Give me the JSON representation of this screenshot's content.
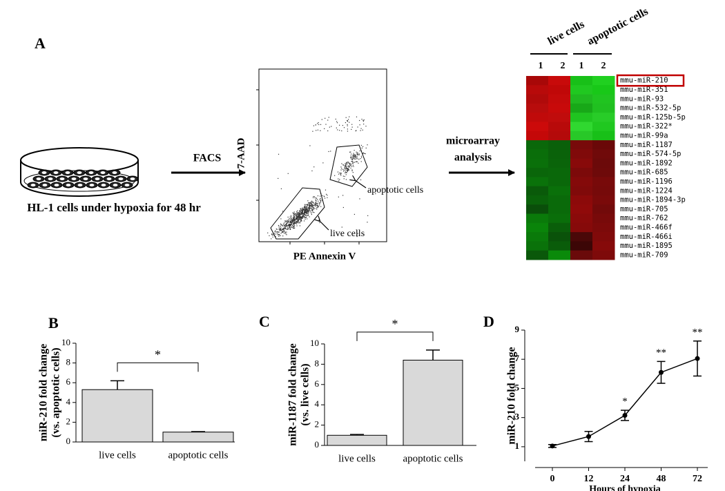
{
  "panel_a": {
    "label": "A",
    "dish_caption": "HL-1 cells under hypoxia for 48 hr",
    "facs_arrow": "FACS",
    "facs_plot": {
      "ylabel": "7-AAD",
      "xlabel": "PE Annexin V",
      "gates": [
        "apoptotic cells",
        "live cells"
      ]
    },
    "analysis_arrow": [
      "microarray",
      "analysis"
    ],
    "heatmap": {
      "groups": [
        "live cells",
        "apoptotic cells"
      ],
      "replicates": [
        "1",
        "2",
        "1",
        "2"
      ],
      "rows": [
        "mmu-miR-210",
        "mmu-miR-351",
        "mmu-miR-93",
        "mmu-miR-532-5p",
        "mmu-miR-125b-5p",
        "mmu-miR-322*",
        "mmu-miR-99a",
        "mmu-miR-1187",
        "mmu-miR-574-5p",
        "mmu-miR-1892",
        "mmu-miR-685",
        "mmu-miR-1196",
        "mmu-miR-1224",
        "mmu-miR-1894-3p",
        "mmu-miR-705",
        "mmu-miR-762",
        "mmu-miR-466f",
        "mmu-miR-466i",
        "mmu-miR-1895",
        "mmu-miR-709"
      ],
      "colors": [
        [
          "#a80808",
          "#c80a0a",
          "#18c018",
          "#20d020"
        ],
        [
          "#b80a0a",
          "#c00808",
          "#20c820",
          "#18c818"
        ],
        [
          "#b00a0a",
          "#c40a0a",
          "#20b820",
          "#20c420"
        ],
        [
          "#b80c0c",
          "#c80a0a",
          "#18a818",
          "#20c020"
        ],
        [
          "#c00a0a",
          "#c00c0c",
          "#20c420",
          "#28cc28"
        ],
        [
          "#cc0a0a",
          "#b80a0a",
          "#30d830",
          "#20c820"
        ],
        [
          "#c40808",
          "#b40a0a",
          "#28c828",
          "#18c018"
        ],
        [
          "#0a680a",
          "#0a600a",
          "#780a0a",
          "#6a0808"
        ],
        [
          "#0a6e0a",
          "#0a620a",
          "#800a0a",
          "#700a0a"
        ],
        [
          "#0a700a",
          "#0a640a",
          "#880a0a",
          "#6c0a0a"
        ],
        [
          "#0a660a",
          "#0a680a",
          "#7c0a0a",
          "#6e0a0a"
        ],
        [
          "#0a720a",
          "#0a680a",
          "#840a0a",
          "#780a0a"
        ],
        [
          "#0a5a0a",
          "#0a700a",
          "#800a0a",
          "#760a0a"
        ],
        [
          "#0a620a",
          "#0a6a0a",
          "#8c0a0a",
          "#7a0a0a"
        ],
        [
          "#0a4e0a",
          "#0a6a0a",
          "#900a0a",
          "#720a0a"
        ],
        [
          "#0a7a0a",
          "#0a6e0a",
          "#8a0a0a",
          "#780a0a"
        ],
        [
          "#0a840a",
          "#0a5e0a",
          "#860a0a",
          "#7c0a0a"
        ],
        [
          "#0a7a0a",
          "#0a520a",
          "#4a0808",
          "#800a0a"
        ],
        [
          "#0a720a",
          "#0a5c0a",
          "#3c0606",
          "#860a0a"
        ],
        [
          "#0a580a",
          "#0a8a0a",
          "#6a0a0a",
          "#7e0a0a"
        ]
      ],
      "highlight_row": 0,
      "highlight_color": "#c00000"
    }
  },
  "chart_data": [
    {
      "type": "bar",
      "label": "B",
      "ylabel": [
        "miR-210 fold change",
        "(vs. apoptotic cells)"
      ],
      "categories": [
        "live cells",
        "apoptotic cells"
      ],
      "values": [
        5.3,
        1.0
      ],
      "errors": [
        0.9,
        0.05
      ],
      "color": "#d9d9d9",
      "ylim": [
        0,
        10
      ],
      "yticks": [
        0,
        2,
        4,
        6,
        8,
        10
      ],
      "significance": {
        "text": "*",
        "between": [
          0,
          1
        ]
      }
    },
    {
      "type": "bar",
      "label": "C",
      "ylabel": [
        "miR-1187 fold change",
        "(vs. live cells)"
      ],
      "categories": [
        "live cells",
        "apoptotic cells"
      ],
      "values": [
        1.0,
        8.4
      ],
      "errors": [
        0.08,
        1.0
      ],
      "color": "#d9d9d9",
      "ylim": [
        0,
        10
      ],
      "yticks": [
        0,
        2,
        4,
        6,
        8,
        10
      ],
      "significance": {
        "text": "*",
        "between": [
          0,
          1
        ]
      }
    },
    {
      "type": "line",
      "label": "D",
      "ylabel": "miR-210 fold change",
      "xlabel": "Hours of hypoxia",
      "categories": [
        "0",
        "12",
        "24",
        "48",
        "72"
      ],
      "values": [
        1.05,
        1.7,
        3.15,
        6.1,
        7.05
      ],
      "errors": [
        0.1,
        0.35,
        0.35,
        0.75,
        1.2
      ],
      "significance": [
        null,
        null,
        "*",
        "**",
        "**"
      ],
      "color": "#000000",
      "ylim": [
        0,
        9
      ],
      "yticks": [
        1,
        3,
        5,
        7,
        9
      ]
    }
  ]
}
